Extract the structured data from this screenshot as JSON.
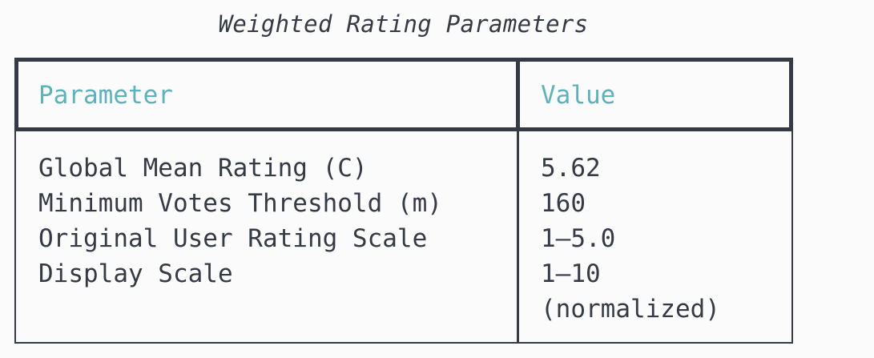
{
  "title": "Weighted Rating Parameters",
  "table": {
    "headers": {
      "parameter": "Parameter",
      "value": "Value"
    },
    "rows": [
      {
        "parameter": "Global Mean Rating (C)",
        "value": "5.62"
      },
      {
        "parameter": "Minimum Votes Threshold (m)",
        "value": "160"
      },
      {
        "parameter": "Original User Rating Scale",
        "value": "1–5.0"
      },
      {
        "parameter": "Display Scale",
        "value": "1–10"
      }
    ],
    "value_continuation": "(normalized)"
  },
  "colors": {
    "header_text": "#5ab3bd",
    "body_text": "#353a44",
    "border": "#353a44",
    "background": "#fbfbfb"
  }
}
